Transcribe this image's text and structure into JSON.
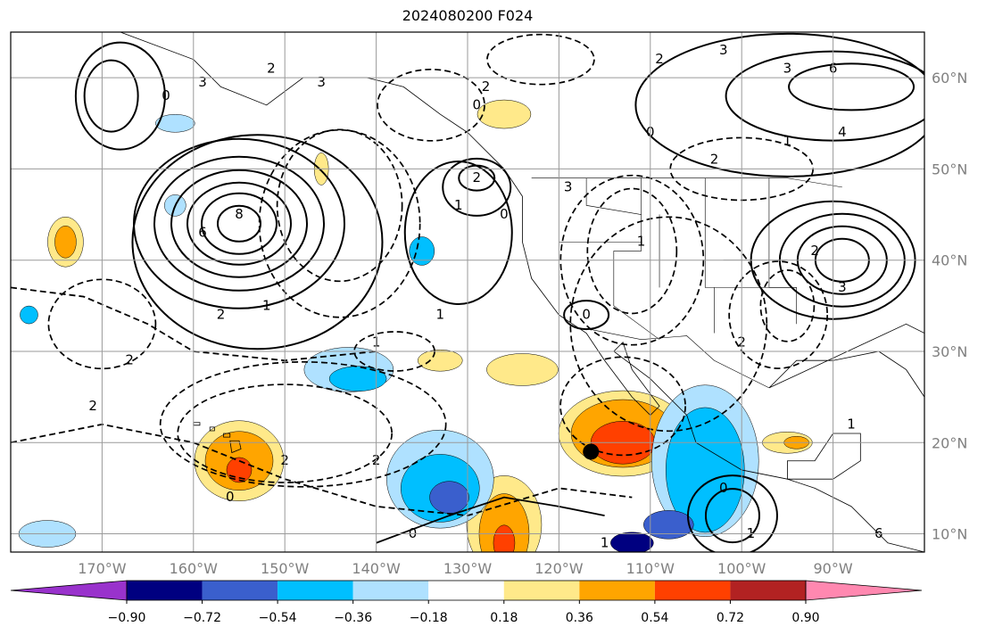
{
  "title": "2024080200 F024",
  "colors": {
    "ocean": "#ffffff",
    "grid": "#9a9a9a",
    "coast": "#000000",
    "neg_extreme": "#9932cc",
    "pos_extreme": "#ff88b0"
  },
  "lat_ticks": [
    {
      "deg": 60,
      "label": "60°N"
    },
    {
      "deg": 50,
      "label": "50°N"
    },
    {
      "deg": 40,
      "label": "40°N"
    },
    {
      "deg": 30,
      "label": "30°N"
    },
    {
      "deg": 20,
      "label": "20°N"
    },
    {
      "deg": 10,
      "label": "10°N"
    }
  ],
  "lon_ticks": [
    {
      "deg": -170,
      "label": "170°W"
    },
    {
      "deg": -160,
      "label": "160°W"
    },
    {
      "deg": -150,
      "label": "150°W"
    },
    {
      "deg": -140,
      "label": "140°W"
    },
    {
      "deg": -130,
      "label": "130°W"
    },
    {
      "deg": -120,
      "label": "120°W"
    },
    {
      "deg": -110,
      "label": "110°W"
    },
    {
      "deg": -100,
      "label": "100°W"
    },
    {
      "deg": -90,
      "label": "90°W"
    }
  ],
  "colorbar": {
    "levels": [
      -0.9,
      -0.72,
      -0.54,
      -0.36,
      -0.18,
      0.18,
      0.36,
      0.54,
      0.72,
      0.9
    ],
    "labels": [
      "−0.90",
      "−0.72",
      "−0.54",
      "−0.36",
      "−0.18",
      "0.18",
      "0.36",
      "0.54",
      "0.72",
      "0.90"
    ],
    "colors": [
      "#000080",
      "#3a5fcd",
      "#00bfff",
      "#afe1ff",
      "#ffffff",
      "#ffe98a",
      "#ffa500",
      "#ff4000",
      "#b22222"
    ]
  },
  "marker": {
    "lat": 19,
    "lon": -116.5,
    "color": "#000000"
  },
  "contour_labels": [
    {
      "text": "2",
      "lat": 61,
      "lon": -151.5
    },
    {
      "text": "3",
      "lat": 59.5,
      "lon": -159
    },
    {
      "text": "0",
      "lat": 58,
      "lon": -163
    },
    {
      "text": "2",
      "lat": 59,
      "lon": -128
    },
    {
      "text": "0",
      "lat": 57,
      "lon": -129
    },
    {
      "text": "3",
      "lat": 59.5,
      "lon": -146
    },
    {
      "text": "8",
      "lat": 45,
      "lon": -155
    },
    {
      "text": "6",
      "lat": 43,
      "lon": -159
    },
    {
      "text": "1",
      "lat": 35,
      "lon": -152
    },
    {
      "text": "2",
      "lat": 34,
      "lon": -157
    },
    {
      "text": "1",
      "lat": 46,
      "lon": -131
    },
    {
      "text": "2",
      "lat": 49,
      "lon": -129
    },
    {
      "text": "1",
      "lat": 34,
      "lon": -133
    },
    {
      "text": "0",
      "lat": 45,
      "lon": -126
    },
    {
      "text": "3",
      "lat": 48,
      "lon": -119
    },
    {
      "text": "1",
      "lat": 42,
      "lon": -111
    },
    {
      "text": "0",
      "lat": 34,
      "lon": -117
    },
    {
      "text": "2",
      "lat": 29,
      "lon": -167
    },
    {
      "text": "2",
      "lat": 24,
      "lon": -171
    },
    {
      "text": "2",
      "lat": 18,
      "lon": -150
    },
    {
      "text": "2",
      "lat": 18,
      "lon": -140
    },
    {
      "text": "0",
      "lat": 14,
      "lon": -156
    },
    {
      "text": "0",
      "lat": 10,
      "lon": -136
    },
    {
      "text": "1",
      "lat": 9,
      "lon": -115
    },
    {
      "text": "0",
      "lat": 15,
      "lon": -102
    },
    {
      "text": "1",
      "lat": 10,
      "lon": -99
    },
    {
      "text": "2",
      "lat": 31,
      "lon": -100
    },
    {
      "text": "3",
      "lat": 63,
      "lon": -102
    },
    {
      "text": "2",
      "lat": 62,
      "lon": -109
    },
    {
      "text": "3",
      "lat": 61,
      "lon": -95
    },
    {
      "text": "6",
      "lat": 61,
      "lon": -90
    },
    {
      "text": "4",
      "lat": 54,
      "lon": -89
    },
    {
      "text": "0",
      "lat": 54,
      "lon": -110
    },
    {
      "text": "2",
      "lat": 51,
      "lon": -103
    },
    {
      "text": "1",
      "lat": 53,
      "lon": -95
    },
    {
      "text": "2",
      "lat": 41,
      "lon": -92
    },
    {
      "text": "3",
      "lat": 37,
      "lon": -89
    },
    {
      "text": "1",
      "lat": 22,
      "lon": -88
    },
    {
      "text": "6",
      "lat": 10,
      "lon": -85
    },
    {
      "text": "1",
      "lat": 31,
      "lon": -140
    }
  ]
}
